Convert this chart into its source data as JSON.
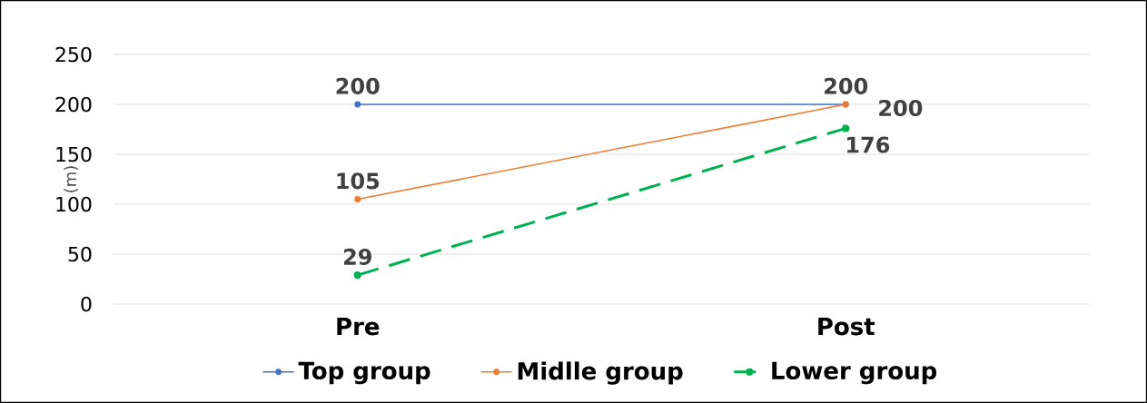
{
  "chart_data": {
    "type": "line",
    "ylabel": "(m)",
    "categories": [
      "Pre",
      "Post"
    ],
    "series": [
      {
        "name": "Top group",
        "color": "#4472c4",
        "values": [
          200,
          200
        ],
        "line_style": "solid"
      },
      {
        "name": "Midlle group",
        "color": "#ed7d31",
        "values": [
          105,
          200
        ],
        "line_style": "solid"
      },
      {
        "name": "Lower group",
        "color": "#00b050",
        "values": [
          29,
          176
        ],
        "line_style": "dashed"
      }
    ],
    "ylim": [
      0,
      250
    ],
    "yticks": [
      0,
      50,
      100,
      150,
      200,
      250
    ],
    "grid": "y",
    "legend": "bottom",
    "marker": "circle",
    "data_labels": true
  }
}
